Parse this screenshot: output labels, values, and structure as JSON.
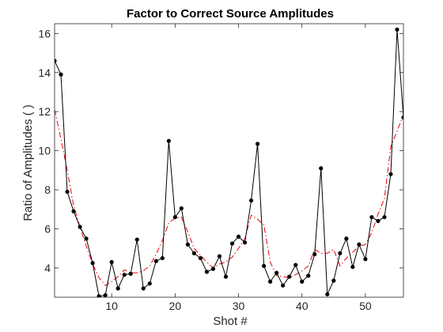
{
  "chart_data": {
    "type": "line",
    "title": "Factor to Correct Source Amplitudes",
    "xlabel": "Shot #",
    "ylabel": "Ratio of Amplitudes ( )",
    "xlim": [
      1,
      56
    ],
    "ylim": [
      2.5,
      16.5
    ],
    "xticks": [
      10,
      20,
      30,
      40,
      50
    ],
    "yticks": [
      4,
      6,
      8,
      10,
      12,
      14,
      16
    ],
    "grid": false,
    "legend": "none",
    "series": [
      {
        "style": "solid-with-markers",
        "color": "#000000",
        "x": [
          1,
          2,
          3,
          4,
          5,
          6,
          7,
          8,
          9,
          10,
          11,
          12,
          13,
          14,
          15,
          16,
          17,
          18,
          19,
          20,
          21,
          22,
          23,
          24,
          25,
          26,
          27,
          28,
          29,
          30,
          31,
          32,
          33,
          34,
          35,
          36,
          37,
          38,
          39,
          40,
          41,
          42,
          43,
          44,
          45,
          46,
          47,
          48,
          49,
          50,
          51,
          52,
          53,
          54,
          55,
          56
        ],
        "y": [
          14.6,
          13.9,
          7.9,
          6.9,
          6.1,
          5.5,
          4.25,
          2.55,
          2.6,
          4.3,
          2.95,
          3.65,
          3.7,
          5.45,
          2.95,
          3.2,
          4.35,
          4.5,
          10.5,
          6.6,
          7.05,
          5.2,
          4.75,
          4.5,
          3.8,
          3.95,
          4.6,
          3.55,
          5.25,
          5.6,
          5.3,
          7.45,
          10.35,
          4.1,
          3.3,
          3.75,
          3.1,
          3.55,
          4.15,
          3.3,
          3.6,
          4.7,
          9.1,
          2.65,
          3.35,
          4.75,
          5.5,
          4.05,
          5.2,
          4.45,
          6.6,
          6.4,
          6.6,
          8.8,
          16.2,
          11.7
        ]
      },
      {
        "style": "dash-dot",
        "color": "#e8000b",
        "x": [
          1,
          2,
          3,
          4,
          5,
          6,
          7,
          8,
          9,
          10,
          11,
          12,
          13,
          14,
          15,
          16,
          17,
          18,
          19,
          20,
          21,
          22,
          23,
          24,
          25,
          26,
          27,
          28,
          29,
          30,
          31,
          32,
          33,
          34,
          35,
          36,
          37,
          38,
          39,
          40,
          41,
          42,
          43,
          44,
          45,
          46,
          47,
          48,
          49,
          50,
          51,
          52,
          53,
          54,
          55,
          56
        ],
        "y": [
          12.1,
          10.6,
          9.0,
          7.2,
          6.1,
          5.1,
          4.2,
          3.5,
          3.1,
          3.3,
          3.55,
          3.9,
          3.75,
          3.75,
          3.85,
          4.1,
          4.7,
          5.4,
          6.3,
          6.55,
          6.6,
          5.85,
          5.0,
          4.65,
          4.3,
          4.0,
          4.2,
          4.3,
          4.55,
          5.0,
          5.5,
          6.7,
          6.5,
          6.2,
          4.3,
          3.6,
          3.55,
          3.5,
          3.65,
          3.85,
          4.1,
          4.95,
          4.75,
          4.75,
          4.95,
          4.1,
          4.5,
          4.8,
          5.1,
          5.2,
          5.8,
          6.75,
          7.55,
          10.2,
          11.0,
          11.85
        ]
      }
    ]
  }
}
